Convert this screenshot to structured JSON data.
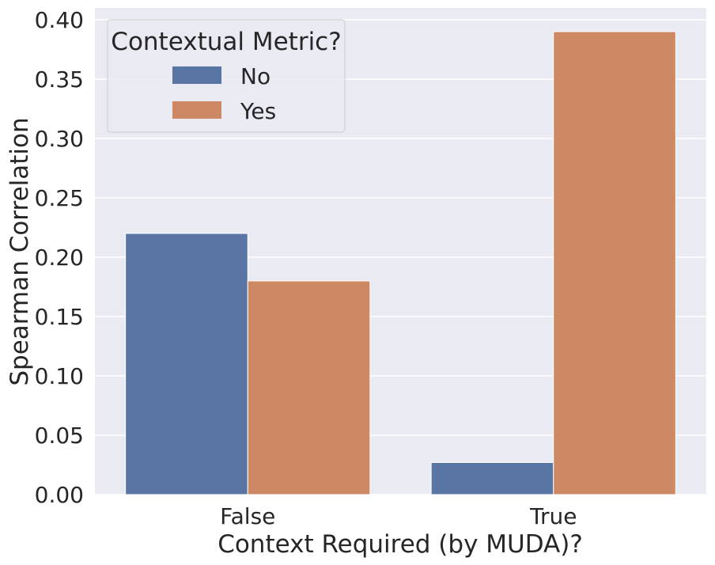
{
  "chart_data": {
    "type": "bar",
    "title": "",
    "xlabel": "Context Required (by MUDA)?",
    "ylabel": "Spearman Correlation",
    "categories": [
      "False",
      "True"
    ],
    "series": [
      {
        "name": "No",
        "values": [
          0.22,
          0.027
        ],
        "color": "#5875a4"
      },
      {
        "name": "Yes",
        "values": [
          0.18,
          0.39
        ],
        "color": "#cc8963"
      }
    ],
    "ylim": [
      0,
      0.41
    ],
    "yticks": [
      0.0,
      0.05,
      0.1,
      0.15,
      0.2,
      0.25,
      0.3,
      0.35,
      0.4
    ],
    "ytick_labels": [
      "0.00",
      "0.05",
      "0.10",
      "0.15",
      "0.20",
      "0.25",
      "0.30",
      "0.35",
      "0.40"
    ],
    "grid": true,
    "legend": {
      "title": "Contextual Metric?",
      "placement": "top-left"
    },
    "background_color": "#eaeaf2"
  }
}
